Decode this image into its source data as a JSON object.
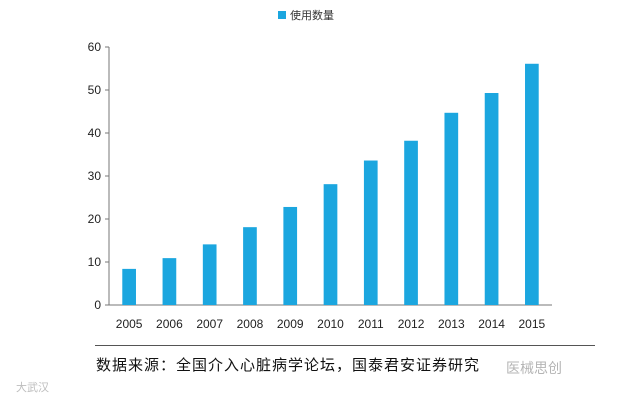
{
  "chart_data": {
    "type": "bar",
    "title": "",
    "xlabel": "",
    "ylabel": "",
    "legend": {
      "entries": [
        "使用数量"
      ],
      "placement": "top-center"
    },
    "categories": [
      "2005",
      "2006",
      "2007",
      "2008",
      "2009",
      "2010",
      "2011",
      "2012",
      "2013",
      "2014",
      "2015"
    ],
    "series": [
      {
        "name": "使用数量",
        "color": "#1BA6DF",
        "values": [
          8.4,
          10.9,
          14.1,
          18.1,
          22.8,
          28.1,
          33.6,
          38.2,
          44.7,
          49.3,
          56.1
        ]
      }
    ],
    "ylim": [
      0,
      60
    ],
    "yticks": [
      0,
      10,
      20,
      30,
      40,
      50,
      60
    ],
    "ytick_labels": [
      "0",
      "10",
      "20",
      "30",
      "40",
      "50",
      "60"
    ],
    "grid": false
  },
  "source_note": "数据来源：全国介入心脏病学论坛，国泰君安证券研究",
  "watermark_left": "大武汉",
  "watermark_right": "医械思创"
}
